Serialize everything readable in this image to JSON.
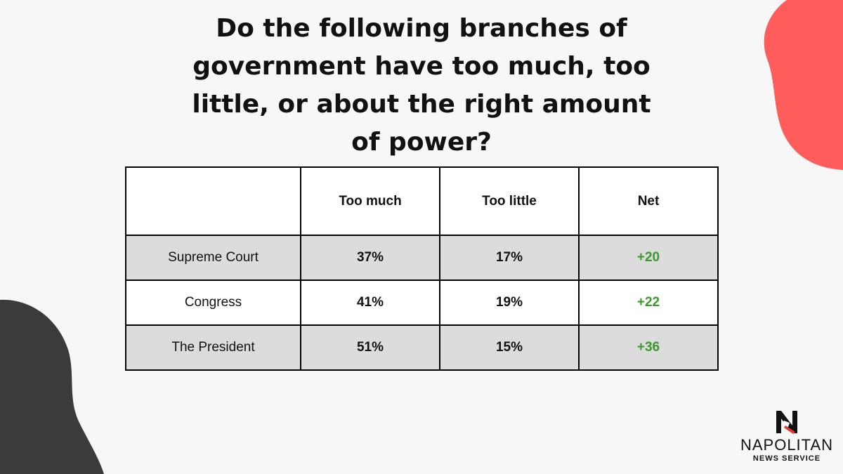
{
  "colors": {
    "background": "#f7f7f7",
    "accent_blob": "#ff5c5c",
    "dark_blob": "#3b3b3b",
    "row_shade": "#dcdcdc",
    "net_positive": "#3a9a2e"
  },
  "title": "Do the following branches of government have too much, too little, or about the right amount of power?",
  "chart_data": {
    "type": "table",
    "columns": [
      "",
      "Too much",
      "Too little",
      "Net"
    ],
    "rows": [
      {
        "label": "Supreme Court",
        "too_much": "37%",
        "too_little": "17%",
        "net": "+20"
      },
      {
        "label": "Congress",
        "too_much": "41%",
        "too_little": "19%",
        "net": "+22"
      },
      {
        "label": "The President",
        "too_much": "51%",
        "too_little": "15%",
        "net": "+36"
      }
    ]
  },
  "logo": {
    "name": "NAPOLITAN",
    "subtitle": "NEWS SERVICE",
    "icon": "napolitan-n-logo-icon"
  }
}
